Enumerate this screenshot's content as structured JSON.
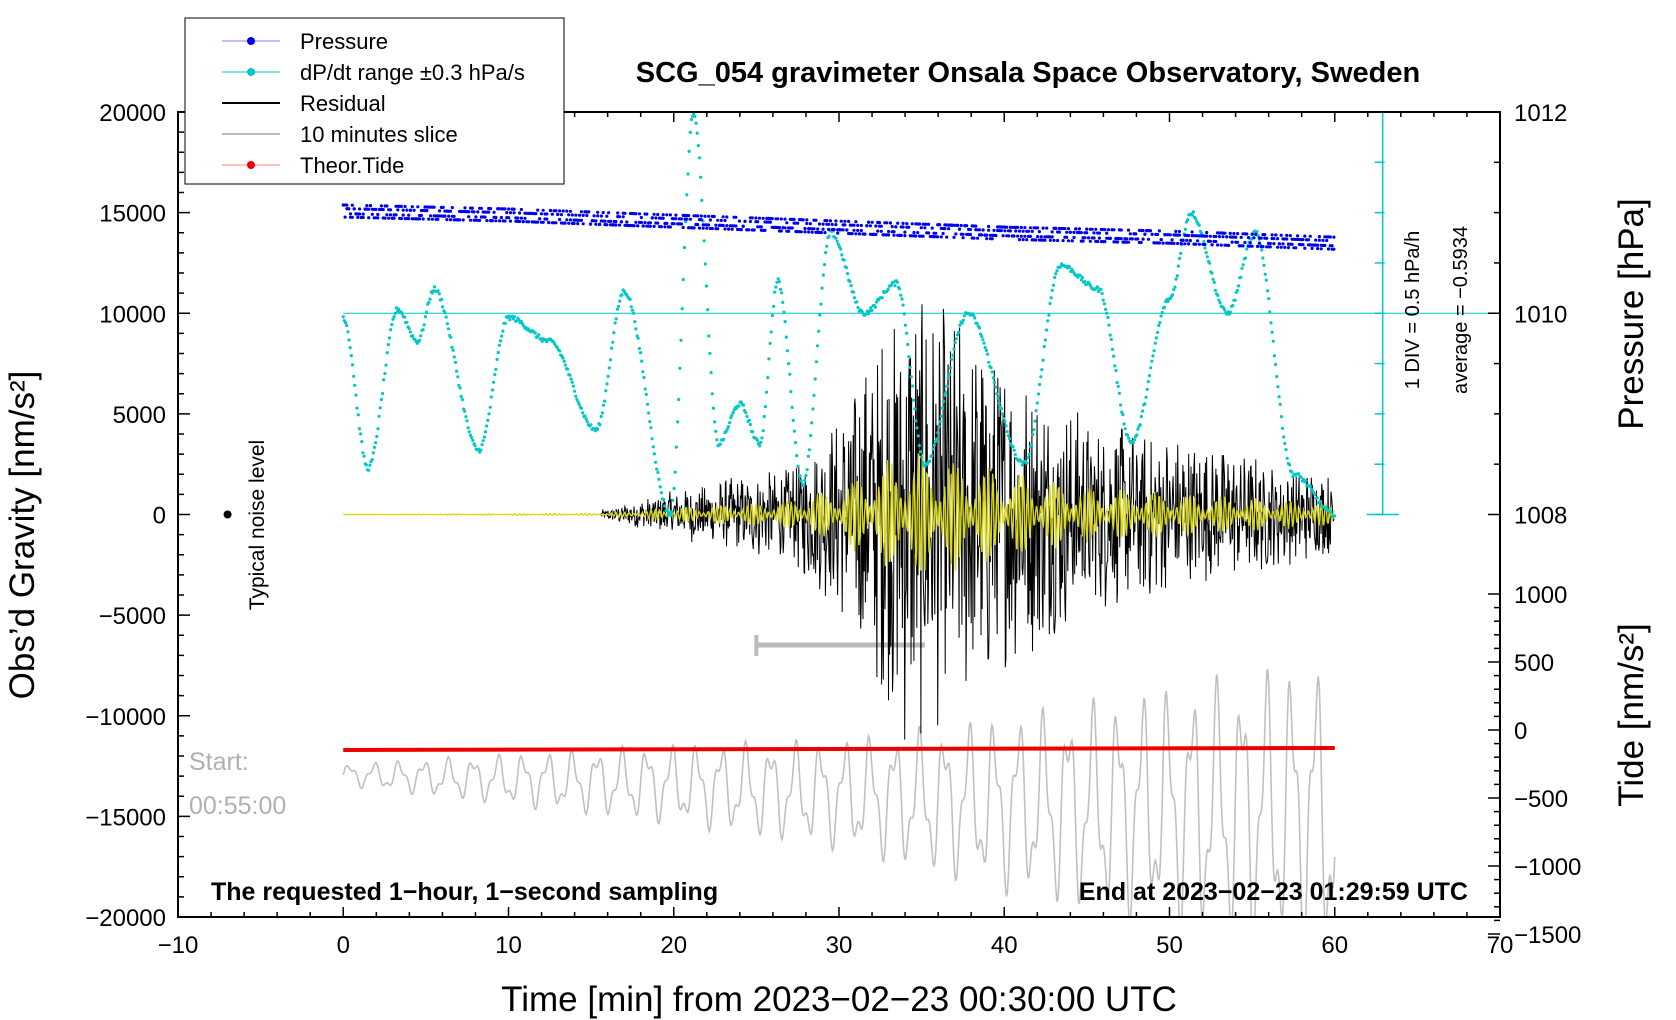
{
  "chart_data": {
    "type": "line",
    "title": "SCG_054 gravimeter Onsala Space Observatory, Sweden",
    "xlabel": "Time [min] from 2023−02−23 00:30:00 UTC",
    "ylabel_left": "Obs’d Gravity [nm/s²]",
    "ylabel_right_top": "Pressure [hPa]",
    "ylabel_right_bottom": "Tide [nm/s²]",
    "xlim": [
      -10,
      70
    ],
    "ylim": [
      -20000,
      20000
    ],
    "x_ticks": [
      "−10",
      "0",
      "10",
      "20",
      "30",
      "40",
      "50",
      "60",
      "70"
    ],
    "y_ticks": [
      "20000",
      "15000",
      "10000",
      "5000",
      "0",
      "−5000",
      "−10000",
      "−15000",
      "−20000"
    ],
    "pressure_ticks": [
      "1012",
      "1010",
      "1008"
    ],
    "tide_ticks": [
      "1000",
      "500",
      "0",
      "−500",
      "−1000",
      "−1500"
    ],
    "legend": [
      {
        "label": "Pressure",
        "color": "#0000ee"
      },
      {
        "label": "dP/dt range ±0.3 hPa/s",
        "color": "#00c8c8"
      },
      {
        "label": "Residual",
        "color": "#000000"
      },
      {
        "label": "10 minutes slice",
        "color": "#bbbbbb"
      },
      {
        "label": "Theor.Tide",
        "color": "#ee0000"
      }
    ],
    "series": [
      {
        "name": "Pressure",
        "x": [
          0,
          10,
          20,
          30,
          40,
          50,
          60
        ],
        "values": [
          15200,
          15000,
          14700,
          14400,
          14100,
          13900,
          13600
        ]
      },
      {
        "name": "dP/dt range ±0.3 hPa/s",
        "x": [
          0,
          1.5,
          3.3,
          4.5,
          5.5,
          8.2,
          10,
          12.5,
          15.3,
          17,
          19.8,
          21.2,
          22.7,
          24,
          25.2,
          26.3,
          27.8,
          29.5,
          31.5,
          33.5,
          35.2,
          37.8,
          41.2,
          43.4,
          45.7,
          47.7,
          50,
          51.3,
          53.5,
          55.2,
          57.5,
          60
        ],
        "values": [
          9800,
          2300,
          10200,
          8600,
          11200,
          3200,
          9800,
          8600,
          4200,
          11100,
          0,
          20000,
          3500,
          5500,
          3500,
          11600,
          1500,
          14000,
          10000,
          11500,
          2500,
          10000,
          2500,
          12400,
          11200,
          3600,
          10700,
          15000,
          10000,
          14000,
          2000,
          0
        ]
      },
      {
        "name": "Residual",
        "x": [
          0,
          15.5,
          20,
          27,
          30,
          33,
          34,
          37,
          40,
          45,
          50,
          55,
          60
        ],
        "values": [
          0,
          200,
          1200,
          2500,
          5000,
          10000,
          12000,
          10000,
          8000,
          5000,
          4000,
          3000,
          2000
        ]
      },
      {
        "name": "Theor.Tide",
        "x": [
          0,
          60
        ],
        "values": [
          -11700,
          -11600
        ]
      },
      {
        "name": "10 minutes slice",
        "x": [
          0,
          30,
          58
        ],
        "values": [
          -12500,
          -9000,
          -16000
        ]
      }
    ],
    "annotations": {
      "noise_label": "Typical noise level",
      "pressure_div": "1 DIV = 0.5 hPa/h",
      "pressure_avg": "average = −0.5934",
      "start_label": "Start:",
      "start_time": "00:55:00",
      "footer_left": "The requested 1−hour, 1−second sampling",
      "footer_right": "End at 2023−02−23 01:29:59 UTC"
    }
  }
}
